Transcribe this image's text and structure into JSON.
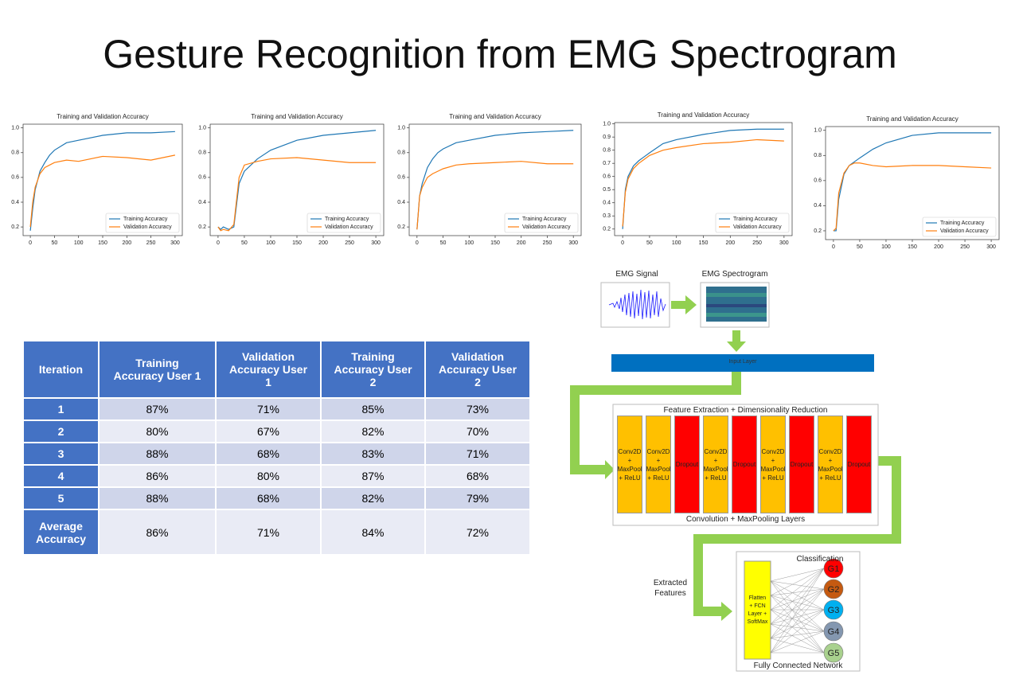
{
  "title": "Gesture Recognition from EMG Spectrogram",
  "chart_data": [
    {
      "type": "line",
      "title": "Training and Validation Accuracy",
      "x": [
        0,
        5,
        10,
        20,
        30,
        40,
        50,
        75,
        100,
        150,
        200,
        250,
        300
      ],
      "series": [
        {
          "name": "Training Accuracy",
          "color": "#1f77b4",
          "values": [
            0.17,
            0.35,
            0.5,
            0.65,
            0.72,
            0.78,
            0.82,
            0.88,
            0.9,
            0.94,
            0.96,
            0.96,
            0.97
          ]
        },
        {
          "name": "Validation Accuracy",
          "color": "#ff7f0e",
          "values": [
            0.2,
            0.4,
            0.52,
            0.63,
            0.68,
            0.7,
            0.72,
            0.74,
            0.73,
            0.77,
            0.76,
            0.74,
            0.78
          ]
        }
      ],
      "xlim": [
        -15,
        315
      ],
      "xticks": [
        0,
        50,
        100,
        150,
        200,
        250,
        300
      ],
      "ylim": [
        0.13,
        1.03
      ],
      "yticks": [
        0.2,
        0.4,
        0.6,
        0.8,
        {
          "value": 1,
          "label": "1.0"
        }
      ],
      "legend": "lower right"
    },
    {
      "type": "line",
      "title": "Training and Validation Accuracy",
      "x": [
        0,
        5,
        10,
        20,
        30,
        40,
        50,
        75,
        100,
        150,
        200,
        250,
        300
      ],
      "series": [
        {
          "name": "Training Accuracy",
          "color": "#1f77b4",
          "values": [
            0.2,
            0.18,
            0.2,
            0.18,
            0.2,
            0.55,
            0.65,
            0.75,
            0.82,
            0.9,
            0.94,
            0.96,
            0.98
          ]
        },
        {
          "name": "Validation Accuracy",
          "color": "#ff7f0e",
          "values": [
            0.2,
            0.17,
            0.18,
            0.17,
            0.22,
            0.6,
            0.7,
            0.73,
            0.75,
            0.76,
            0.74,
            0.72,
            0.72
          ]
        }
      ],
      "xlim": [
        -15,
        315
      ],
      "xticks": [
        0,
        50,
        100,
        150,
        200,
        250,
        300
      ],
      "ylim": [
        0.13,
        1.03
      ],
      "yticks": [
        0.2,
        0.4,
        0.6,
        0.8,
        {
          "value": 1,
          "label": "1.0"
        }
      ],
      "legend": "lower right"
    },
    {
      "type": "line",
      "title": "Training and Validation Accuracy",
      "x": [
        0,
        5,
        10,
        20,
        30,
        40,
        50,
        75,
        100,
        150,
        200,
        250,
        300
      ],
      "series": [
        {
          "name": "Training Accuracy",
          "color": "#1f77b4",
          "values": [
            0.18,
            0.45,
            0.55,
            0.68,
            0.75,
            0.8,
            0.83,
            0.88,
            0.9,
            0.94,
            0.96,
            0.97,
            0.98
          ]
        },
        {
          "name": "Validation Accuracy",
          "color": "#ff7f0e",
          "values": [
            0.18,
            0.45,
            0.52,
            0.6,
            0.63,
            0.65,
            0.67,
            0.7,
            0.71,
            0.72,
            0.73,
            0.71,
            0.71
          ]
        }
      ],
      "xlim": [
        -15,
        315
      ],
      "xticks": [
        0,
        50,
        100,
        150,
        200,
        250,
        300
      ],
      "ylim": [
        0.13,
        1.03
      ],
      "yticks": [
        0.2,
        0.4,
        0.6,
        0.8,
        {
          "value": 1,
          "label": "1.0"
        }
      ],
      "legend": "lower right"
    },
    {
      "type": "line",
      "title": "Training and Validation Accuracy",
      "x": [
        0,
        5,
        10,
        20,
        30,
        40,
        50,
        75,
        100,
        150,
        200,
        250,
        300
      ],
      "series": [
        {
          "name": "Training Accuracy",
          "color": "#1f77b4",
          "values": [
            0.2,
            0.5,
            0.6,
            0.68,
            0.72,
            0.75,
            0.78,
            0.85,
            0.88,
            0.92,
            0.95,
            0.96,
            0.96
          ]
        },
        {
          "name": "Validation Accuracy",
          "color": "#ff7f0e",
          "values": [
            0.22,
            0.48,
            0.58,
            0.66,
            0.7,
            0.73,
            0.76,
            0.8,
            0.82,
            0.85,
            0.86,
            0.88,
            0.87
          ]
        }
      ],
      "xlim": [
        -15,
        315
      ],
      "xticks": [
        0,
        50,
        100,
        150,
        200,
        250,
        300
      ],
      "ylim": [
        0.15,
        1.01
      ],
      "yticks": [
        0.2,
        0.3,
        0.4,
        0.5,
        0.6,
        0.7,
        0.8,
        0.9,
        {
          "value": 1,
          "label": "1.0"
        }
      ],
      "legend": "lower right"
    },
    {
      "type": "line",
      "title": "Training and Validation Accuracy",
      "x": [
        0,
        5,
        10,
        20,
        30,
        40,
        50,
        75,
        100,
        150,
        200,
        250,
        300
      ],
      "series": [
        {
          "name": "Training Accuracy",
          "color": "#1f77b4",
          "values": [
            0.2,
            0.2,
            0.45,
            0.65,
            0.72,
            0.75,
            0.78,
            0.85,
            0.9,
            0.96,
            0.98,
            0.98,
            0.98
          ]
        },
        {
          "name": "Validation Accuracy",
          "color": "#ff7f0e",
          "values": [
            0.2,
            0.22,
            0.5,
            0.66,
            0.72,
            0.74,
            0.74,
            0.72,
            0.71,
            0.72,
            0.72,
            0.71,
            0.7
          ]
        }
      ],
      "xlim": [
        -15,
        315
      ],
      "xticks": [
        0,
        50,
        100,
        150,
        200,
        250,
        300
      ],
      "ylim": [
        0.13,
        1.03
      ],
      "yticks": [
        0.2,
        0.4,
        0.6,
        0.8,
        {
          "value": 1,
          "label": "1.0"
        }
      ],
      "legend": "lower right"
    }
  ],
  "table": {
    "header": [
      "Iteration",
      "Training Accuracy User 1",
      "Validation Accuracy User 1",
      "Training Accuracy User 2",
      "Validation Accuracy User 2"
    ],
    "rows": [
      [
        "1",
        "87%",
        "71%",
        "85%",
        "73%"
      ],
      [
        "2",
        "80%",
        "67%",
        "82%",
        "70%"
      ],
      [
        "3",
        "88%",
        "68%",
        "83%",
        "71%"
      ],
      [
        "4",
        "86%",
        "80%",
        "87%",
        "68%"
      ],
      [
        "5",
        "88%",
        "68%",
        "82%",
        "79%"
      ],
      [
        "Average Accuracy",
        "86%",
        "71%",
        "84%",
        "72%"
      ]
    ]
  },
  "diagram": {
    "signal_label": "EMG Signal",
    "spectrogram_label": "EMG Spectrogram",
    "input_layer": "Input Layer",
    "feature_title": "Feature Extraction + Dimensionality Reduction",
    "blocks": [
      "Conv2D + MaxPool + ReLU",
      "Conv2D + MaxPool + ReLU",
      "Dropout",
      "Conv2D + MaxPool + ReLU",
      "Dropout",
      "Conv2D + MaxPool + ReLU",
      "Dropout",
      "Conv2D + MaxPool + ReLU",
      "Dropout"
    ],
    "conv_title": "Convolution + MaxPooling Layers",
    "extracted_features": "Extracted Features",
    "classification_title": "Classification",
    "fcn_layer": "Flatten + FCN Layer + SoftMax",
    "classes": [
      "G1",
      "G2",
      "G3",
      "G4",
      "G5"
    ],
    "fcn_title": "Fully Connected Network"
  }
}
